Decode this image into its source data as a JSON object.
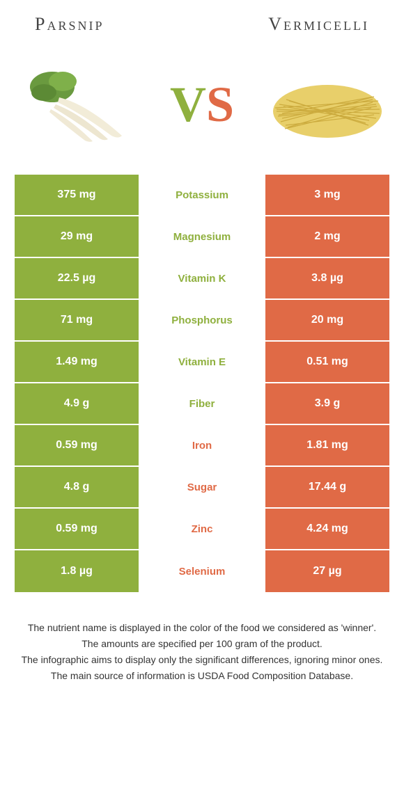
{
  "header": {
    "left_title": "Parsnip",
    "right_title": "Vermicelli"
  },
  "vs": {
    "v": "V",
    "s": "S"
  },
  "colors": {
    "green": "#8fb03e",
    "orange": "#e06a46"
  },
  "rows": [
    {
      "left": "375 mg",
      "label": "Potassium",
      "right": "3 mg",
      "winner": "green"
    },
    {
      "left": "29 mg",
      "label": "Magnesium",
      "right": "2 mg",
      "winner": "green"
    },
    {
      "left": "22.5 µg",
      "label": "Vitamin K",
      "right": "3.8 µg",
      "winner": "green"
    },
    {
      "left": "71 mg",
      "label": "Phosphorus",
      "right": "20 mg",
      "winner": "green"
    },
    {
      "left": "1.49 mg",
      "label": "Vitamin E",
      "right": "0.51 mg",
      "winner": "green"
    },
    {
      "left": "4.9 g",
      "label": "Fiber",
      "right": "3.9 g",
      "winner": "green"
    },
    {
      "left": "0.59 mg",
      "label": "Iron",
      "right": "1.81 mg",
      "winner": "orange"
    },
    {
      "left": "4.8 g",
      "label": "Sugar",
      "right": "17.44 g",
      "winner": "orange"
    },
    {
      "left": "0.59 mg",
      "label": "Zinc",
      "right": "4.24 mg",
      "winner": "orange"
    },
    {
      "left": "1.8 µg",
      "label": "Selenium",
      "right": "27 µg",
      "winner": "orange"
    }
  ],
  "footer": {
    "line1": "The nutrient name is displayed in the color of the food we considered as 'winner'.",
    "line2": "The amounts are specified per 100 gram of the product.",
    "line3": "The infographic aims to display only the significant differences, ignoring minor ones.",
    "line4": "The main source of information is USDA Food Composition Database."
  }
}
